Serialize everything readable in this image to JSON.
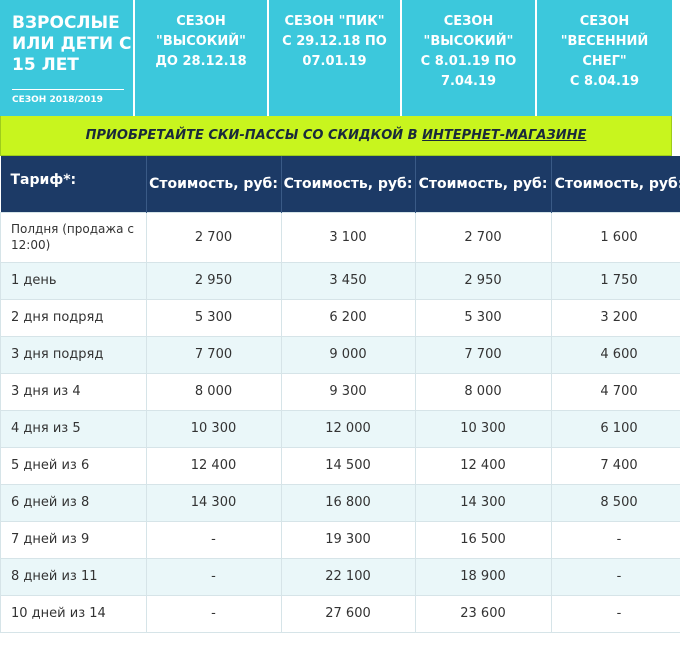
{
  "header": {
    "title_lines": [
      "ВЗРОСЛЫЕ",
      "ИЛИ ДЕТИ С",
      "15 ЛЕТ"
    ],
    "season": "СЕЗОН 2018/2019",
    "seasons": [
      {
        "lines": [
          "СЕЗОН",
          "\"ВЫСОКИЙ\"",
          "ДО 28.12.18"
        ]
      },
      {
        "lines": [
          "СЕЗОН \"ПИК\"",
          "С 29.12.18 ПО",
          "07.01.19"
        ]
      },
      {
        "lines": [
          "СЕЗОН",
          "\"ВЫСОКИЙ\"",
          "С 8.01.19 ПО",
          "7.04.19"
        ]
      },
      {
        "lines": [
          "СЕЗОН",
          "\"ВЕСЕННИЙ",
          "СНЕГ\"",
          "С 8.04.19"
        ]
      }
    ]
  },
  "promo": {
    "text": "ПРИОБРЕТАЙТЕ СКИ-ПАССЫ СО СКИДКОЙ В ",
    "link": "ИНТЕРНЕТ-МАГАЗИНЕ"
  },
  "table": {
    "columns": [
      "Тариф*:",
      "Стоимость, руб:",
      "Стоимость, руб:",
      "Стоимость, руб:",
      "Стоимость, руб:"
    ],
    "rows": [
      [
        "Полдня (продажа с 12:00)",
        "2 700",
        "3 100",
        "2 700",
        "1 600"
      ],
      [
        "1 день",
        "2 950",
        "3 450",
        "2 950",
        "1 750"
      ],
      [
        "2 дня подряд",
        "5 300",
        "6 200",
        "5 300",
        "3 200"
      ],
      [
        "3 дня подряд",
        "7 700",
        "9 000",
        "7 700",
        "4 600"
      ],
      [
        "3 дня из 4",
        "8 000",
        "9 300",
        "8 000",
        "4 700"
      ],
      [
        "4 дня из 5",
        "10 300",
        "12 000",
        "10 300",
        "6 100"
      ],
      [
        "5 дней из 6",
        "12 400",
        "14 500",
        "12 400",
        "7 400"
      ],
      [
        "6 дней из 8",
        "14 300",
        "16 800",
        "14 300",
        "8 500"
      ],
      [
        "7 дней из 9",
        "-",
        "19 300",
        "16 500",
        "-"
      ],
      [
        "8 дней из 11",
        "-",
        "22 100",
        "18 900",
        "-"
      ],
      [
        "10 дней из 14",
        "-",
        "27 600",
        "23 600",
        "-"
      ]
    ]
  }
}
